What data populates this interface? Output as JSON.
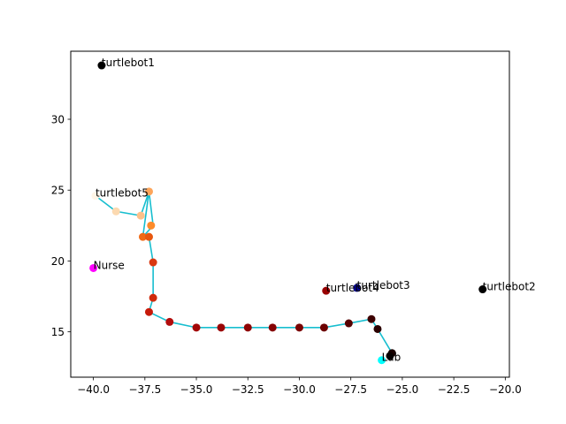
{
  "chart_data": {
    "type": "scatter",
    "xlim": [
      -41.1,
      -19.8
    ],
    "ylim": [
      11.8,
      34.8
    ],
    "x_ticks": [
      -40.0,
      -37.5,
      -35.0,
      -32.5,
      -30.0,
      -27.5,
      -25.0,
      -22.5,
      -20.0
    ],
    "x_tick_labels": [
      "−40.0",
      "−37.5",
      "−35.0",
      "−32.5",
      "−30.0",
      "−27.5",
      "−25.0",
      "−22.5",
      "−20.0"
    ],
    "y_ticks": [
      15,
      20,
      25,
      30
    ],
    "y_tick_labels": [
      "15",
      "20",
      "25",
      "30"
    ],
    "grid": false,
    "path_color": "#17becf",
    "paths": [
      {
        "color": "#17becf",
        "points": [
          [
            -39.9,
            24.6
          ],
          [
            -38.9,
            23.5
          ],
          [
            -37.7,
            23.2
          ],
          [
            -37.3,
            24.9
          ],
          [
            -37.1,
            22.5
          ],
          [
            -37.6,
            21.7
          ],
          [
            -37.3,
            21.7
          ],
          [
            -37.1,
            19.9
          ],
          [
            -37.1,
            17.4
          ],
          [
            -37.3,
            16.4
          ],
          [
            -36.3,
            15.7
          ],
          [
            -35.0,
            15.3
          ],
          [
            -33.8,
            15.3
          ],
          [
            -32.5,
            15.3
          ],
          [
            -31.3,
            15.3
          ],
          [
            -30.0,
            15.3
          ],
          [
            -28.8,
            15.3
          ],
          [
            -27.6,
            15.6
          ],
          [
            -26.5,
            15.9
          ],
          [
            -26.2,
            15.2
          ],
          [
            -25.5,
            13.5
          ],
          [
            -25.6,
            13.3
          ]
        ]
      },
      {
        "color": "#17becf",
        "points": [
          [
            -37.3,
            24.9
          ],
          [
            -37.6,
            21.7
          ]
        ]
      }
    ],
    "points": [
      {
        "x": -39.6,
        "y": 33.8,
        "color": "#000000"
      },
      {
        "x": -39.9,
        "y": 24.6,
        "color": "#fff5e6"
      },
      {
        "x": -38.9,
        "y": 23.5,
        "color": "#fcd9b0"
      },
      {
        "x": -37.7,
        "y": 23.2,
        "color": "#fdc08a"
      },
      {
        "x": -37.3,
        "y": 24.9,
        "color": "#fda55a"
      },
      {
        "x": -37.2,
        "y": 22.5,
        "color": "#fd8b2a"
      },
      {
        "x": -37.6,
        "y": 21.7,
        "color": "#f06a14"
      },
      {
        "x": -37.3,
        "y": 21.7,
        "color": "#e7570e"
      },
      {
        "x": -37.1,
        "y": 19.9,
        "color": "#d93810"
      },
      {
        "x": -37.1,
        "y": 17.4,
        "color": "#d02a0b"
      },
      {
        "x": -37.3,
        "y": 16.4,
        "color": "#c71a0a"
      },
      {
        "x": -36.3,
        "y": 15.7,
        "color": "#b20d0d"
      },
      {
        "x": -35.0,
        "y": 15.3,
        "color": "#a30606"
      },
      {
        "x": -33.8,
        "y": 15.3,
        "color": "#9a0505"
      },
      {
        "x": -32.5,
        "y": 15.3,
        "color": "#8f0404"
      },
      {
        "x": -31.3,
        "y": 15.3,
        "color": "#850303"
      },
      {
        "x": -30.0,
        "y": 15.3,
        "color": "#7a0202"
      },
      {
        "x": -28.8,
        "y": 15.3,
        "color": "#6c0101"
      },
      {
        "x": -27.6,
        "y": 15.6,
        "color": "#550000"
      },
      {
        "x": -26.5,
        "y": 15.9,
        "color": "#3d0000"
      },
      {
        "x": -26.2,
        "y": 15.2,
        "color": "#2a0000"
      },
      {
        "x": -25.5,
        "y": 13.5,
        "color": "#1a0000"
      },
      {
        "x": -25.6,
        "y": 13.3,
        "color": "#0a0000"
      },
      {
        "x": -26.0,
        "y": 13.0,
        "color": "#00ffff"
      },
      {
        "x": -28.7,
        "y": 17.9,
        "color": "#990000"
      },
      {
        "x": -27.2,
        "y": 18.1,
        "color": "#000099"
      },
      {
        "x": -21.1,
        "y": 18.0,
        "color": "#000000"
      },
      {
        "x": -40.0,
        "y": 19.5,
        "color": "#ff00ff"
      }
    ],
    "annotations": [
      {
        "text": "turtlebot1",
        "x": -39.6,
        "y": 33.8
      },
      {
        "text": "turtlebot5",
        "x": -39.9,
        "y": 24.6
      },
      {
        "text": "Nurse",
        "x": -40.0,
        "y": 19.5
      },
      {
        "text": "turtlebot4",
        "x": -28.7,
        "y": 17.9
      },
      {
        "text": "turtlebot3",
        "x": -27.2,
        "y": 18.1
      },
      {
        "text": "turtlebot2",
        "x": -21.1,
        "y": 18.0
      },
      {
        "text": "Lab",
        "x": -26.0,
        "y": 13.0
      }
    ]
  }
}
